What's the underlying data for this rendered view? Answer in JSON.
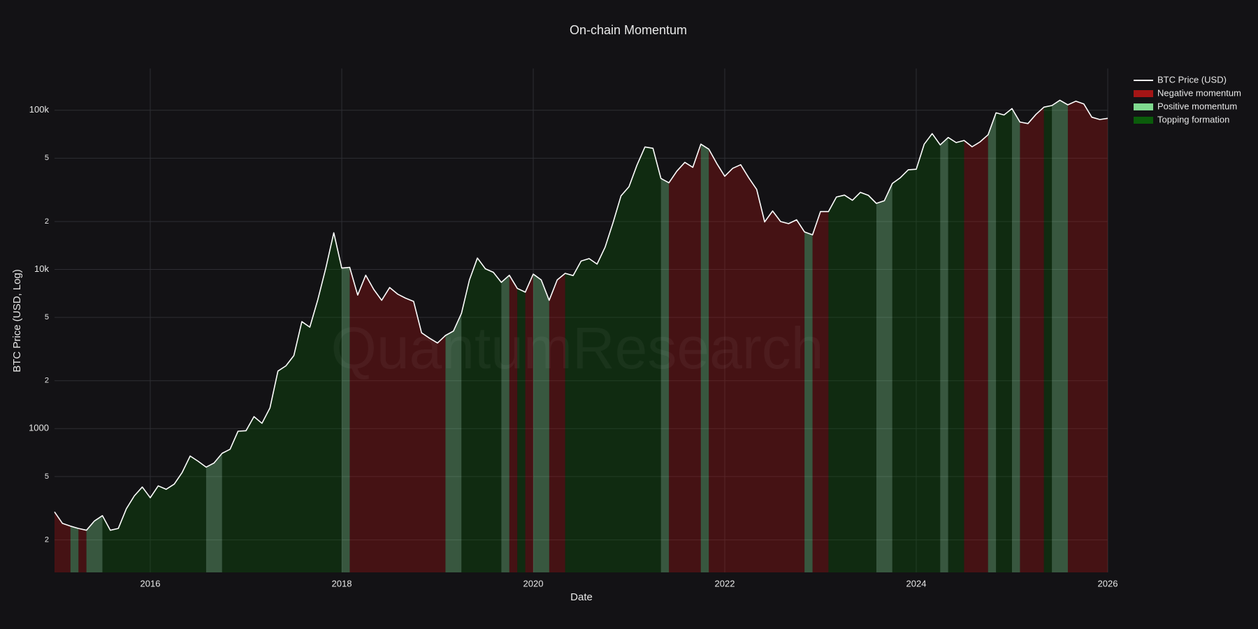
{
  "chart_data": {
    "type": "line",
    "title": "On-chain Momentum",
    "x_label": "Date",
    "y_label": "BTC Price (USD, Log)",
    "watermark": "QuantumResearch",
    "log_y": true,
    "grid": true,
    "legend_position": "right",
    "xlim": [
      "2015-01",
      "2026-01"
    ],
    "xticks": [
      "2016",
      "2018",
      "2020",
      "2022",
      "2024",
      "2026"
    ],
    "ylim": [
      125,
      183000
    ],
    "yticks": [
      {
        "value": 200,
        "label": "2"
      },
      {
        "value": 500,
        "label": "5"
      },
      1000,
      {
        "value": 2000,
        "label": "2"
      },
      {
        "value": 5000,
        "label": "5"
      },
      {
        "value": 10000,
        "label": "10k"
      },
      {
        "value": 20000,
        "label": "2"
      },
      {
        "value": 50000,
        "label": "5"
      },
      {
        "value": 100000,
        "label": "100k"
      }
    ],
    "x": [
      "2015-01",
      "2015-02",
      "2015-03",
      "2015-04",
      "2015-05",
      "2015-06",
      "2015-07",
      "2015-08",
      "2015-09",
      "2015-10",
      "2015-11",
      "2015-12",
      "2016-01",
      "2016-02",
      "2016-03",
      "2016-04",
      "2016-05",
      "2016-06",
      "2016-07",
      "2016-08",
      "2016-09",
      "2016-10",
      "2016-11",
      "2016-12",
      "2017-01",
      "2017-02",
      "2017-03",
      "2017-04",
      "2017-05",
      "2017-06",
      "2017-07",
      "2017-08",
      "2017-09",
      "2017-10",
      "2017-11",
      "2017-12",
      "2018-01",
      "2018-02",
      "2018-03",
      "2018-04",
      "2018-05",
      "2018-06",
      "2018-07",
      "2018-08",
      "2018-09",
      "2018-10",
      "2018-11",
      "2018-12",
      "2019-01",
      "2019-02",
      "2019-03",
      "2019-04",
      "2019-05",
      "2019-06",
      "2019-07",
      "2019-08",
      "2019-09",
      "2019-10",
      "2019-11",
      "2019-12",
      "2020-01",
      "2020-02",
      "2020-03",
      "2020-04",
      "2020-05",
      "2020-06",
      "2020-07",
      "2020-08",
      "2020-09",
      "2020-10",
      "2020-11",
      "2020-12",
      "2021-01",
      "2021-02",
      "2021-03",
      "2021-04",
      "2021-05",
      "2021-06",
      "2021-07",
      "2021-08",
      "2021-09",
      "2021-10",
      "2021-11",
      "2021-12",
      "2022-01",
      "2022-02",
      "2022-03",
      "2022-04",
      "2022-05",
      "2022-06",
      "2022-07",
      "2022-08",
      "2022-09",
      "2022-10",
      "2022-11",
      "2022-12",
      "2023-01",
      "2023-02",
      "2023-03",
      "2023-04",
      "2023-05",
      "2023-06",
      "2023-07",
      "2023-08",
      "2023-09",
      "2023-10",
      "2023-11",
      "2023-12",
      "2024-01",
      "2024-02",
      "2024-03",
      "2024-04",
      "2024-05",
      "2024-06",
      "2024-07",
      "2024-08",
      "2024-09",
      "2024-10",
      "2024-11",
      "2024-12",
      "2025-01",
      "2025-02",
      "2025-03",
      "2025-04",
      "2025-05",
      "2025-06",
      "2025-07",
      "2025-08",
      "2025-09",
      "2025-10",
      "2025-11",
      "2025-12",
      "2026-01"
    ],
    "series": [
      {
        "name": "BTC Price (USD)",
        "color": "#ffffff",
        "values": [
          300,
          254,
          244,
          236,
          230,
          263,
          284,
          230,
          236,
          314,
          378,
          430,
          368,
          437,
          416,
          448,
          531,
          673,
          624,
          573,
          609,
          700,
          742,
          963,
          970,
          1190,
          1080,
          1350,
          2300,
          2480,
          2880,
          4700,
          4340,
          6470,
          10200,
          17000,
          10200,
          10300,
          6900,
          9200,
          7500,
          6400,
          7700,
          7000,
          6600,
          6300,
          4000,
          3700,
          3450,
          3850,
          4100,
          5300,
          8600,
          11800,
          10100,
          9600,
          8300,
          9200,
          7600,
          7200,
          9350,
          8600,
          6400,
          8600,
          9450,
          9150,
          11300,
          11700,
          10800,
          13800,
          19700,
          29000,
          33100,
          45200,
          58800,
          57700,
          37300,
          35000,
          41500,
          47100,
          43800,
          61300,
          57000,
          46300,
          38500,
          43200,
          45500,
          37700,
          31800,
          19900,
          23300,
          20000,
          19400,
          20500,
          17200,
          16500,
          23100,
          23100,
          28500,
          29300,
          27200,
          30500,
          29200,
          26000,
          27000,
          34700,
          37700,
          42300,
          42600,
          61200,
          71300,
          60600,
          67500,
          62700,
          64600,
          59000,
          63300,
          70200,
          96400,
          93400,
          102400,
          84400,
          82500,
          94200,
          104600,
          107100,
          115700,
          108200,
          114000,
          109500,
          90500,
          87500,
          89000
        ]
      }
    ],
    "regimes": [
      {
        "name": "Negative momentum",
        "color": "#a31515",
        "periods": [
          [
            "2015-01",
            "2015-03"
          ],
          [
            "2015-04",
            "2015-05"
          ],
          [
            "2018-02",
            "2019-02"
          ],
          [
            "2019-10",
            "2019-11"
          ],
          [
            "2019-12",
            "2020-01"
          ],
          [
            "2020-03",
            "2020-05"
          ],
          [
            "2021-06",
            "2021-10"
          ],
          [
            "2021-11",
            "2022-11"
          ],
          [
            "2022-12",
            "2023-02"
          ],
          [
            "2024-07",
            "2024-10"
          ],
          [
            "2025-02",
            "2025-05"
          ],
          [
            "2025-08",
            "2026-01"
          ]
        ]
      },
      {
        "name": "Positive momentum",
        "color": "#7fd98f",
        "periods": [
          [
            "2015-03",
            "2015-04"
          ],
          [
            "2015-05",
            "2015-07"
          ],
          [
            "2016-08",
            "2016-10"
          ],
          [
            "2018-01",
            "2018-02"
          ],
          [
            "2019-02",
            "2019-04"
          ],
          [
            "2019-09",
            "2019-10"
          ],
          [
            "2020-01",
            "2020-03"
          ],
          [
            "2021-05",
            "2021-06"
          ],
          [
            "2021-10",
            "2021-11"
          ],
          [
            "2022-11",
            "2022-12"
          ],
          [
            "2023-08",
            "2023-10"
          ],
          [
            "2024-04",
            "2024-05"
          ],
          [
            "2024-10",
            "2024-11"
          ],
          [
            "2025-01",
            "2025-02"
          ],
          [
            "2025-06",
            "2025-08"
          ]
        ]
      },
      {
        "name": "Topping formation",
        "color": "#0b5c0b",
        "periods": [
          [
            "2015-07",
            "2016-08"
          ],
          [
            "2016-10",
            "2018-01"
          ],
          [
            "2019-04",
            "2019-09"
          ],
          [
            "2019-11",
            "2019-12"
          ],
          [
            "2020-05",
            "2021-05"
          ],
          [
            "2023-02",
            "2023-08"
          ],
          [
            "2023-10",
            "2024-04"
          ],
          [
            "2024-05",
            "2024-07"
          ],
          [
            "2024-11",
            "2025-01"
          ],
          [
            "2025-05",
            "2025-06"
          ]
        ]
      }
    ]
  }
}
